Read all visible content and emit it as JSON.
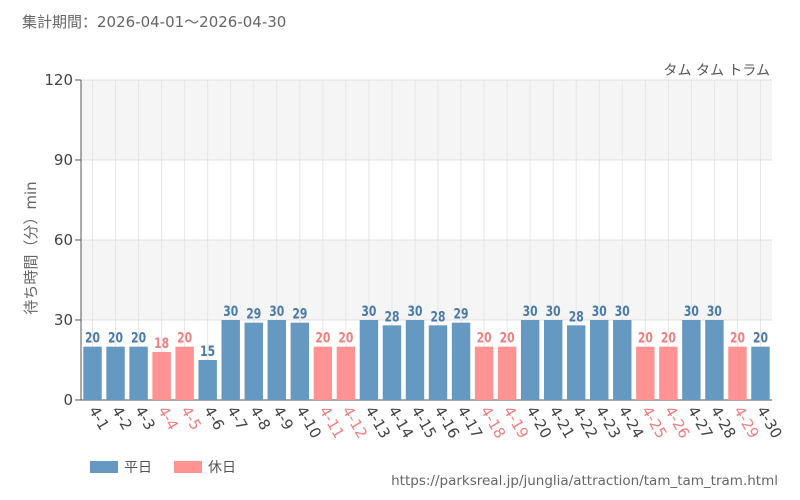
{
  "header": {
    "period": "集計期間：2026-04-01～2026-04-30",
    "attraction": "タム タム トラム"
  },
  "footer": {
    "source": "https://parksreal.jp/junglia/attraction/tam_tam_tram.html"
  },
  "colors": {
    "weekday": "#6699c2",
    "holiday": "#ff9393",
    "weekday_text": "#4a7ba8",
    "holiday_text": "#f08080"
  },
  "chart_data": {
    "type": "bar",
    "ylabel": "待ち時間（分）min",
    "ylim": [
      0,
      120
    ],
    "yticks": [
      0,
      30,
      60,
      90,
      120
    ],
    "grid": true,
    "legend_position": "bottom-left",
    "categories": [
      "4-1",
      "4-2",
      "4-3",
      "4-4",
      "4-5",
      "4-6",
      "4-7",
      "4-8",
      "4-9",
      "4-10",
      "4-11",
      "4-12",
      "4-13",
      "4-14",
      "4-15",
      "4-16",
      "4-17",
      "4-18",
      "4-19",
      "4-20",
      "4-21",
      "4-22",
      "4-23",
      "4-24",
      "4-25",
      "4-26",
      "4-27",
      "4-28",
      "4-29",
      "4-30"
    ],
    "values": [
      20,
      20,
      20,
      18,
      20,
      15,
      30,
      29,
      30,
      29,
      20,
      20,
      30,
      28,
      30,
      28,
      29,
      20,
      20,
      30,
      30,
      28,
      30,
      30,
      20,
      20,
      30,
      30,
      20,
      20
    ],
    "day_type": [
      "weekday",
      "weekday",
      "weekday",
      "holiday",
      "holiday",
      "weekday",
      "weekday",
      "weekday",
      "weekday",
      "weekday",
      "holiday",
      "holiday",
      "weekday",
      "weekday",
      "weekday",
      "weekday",
      "weekday",
      "holiday",
      "holiday",
      "weekday",
      "weekday",
      "weekday",
      "weekday",
      "weekday",
      "holiday",
      "holiday",
      "weekday",
      "weekday",
      "holiday",
      "weekday"
    ],
    "series": [
      {
        "name": "平日",
        "key": "weekday"
      },
      {
        "name": "休日",
        "key": "holiday"
      }
    ]
  }
}
